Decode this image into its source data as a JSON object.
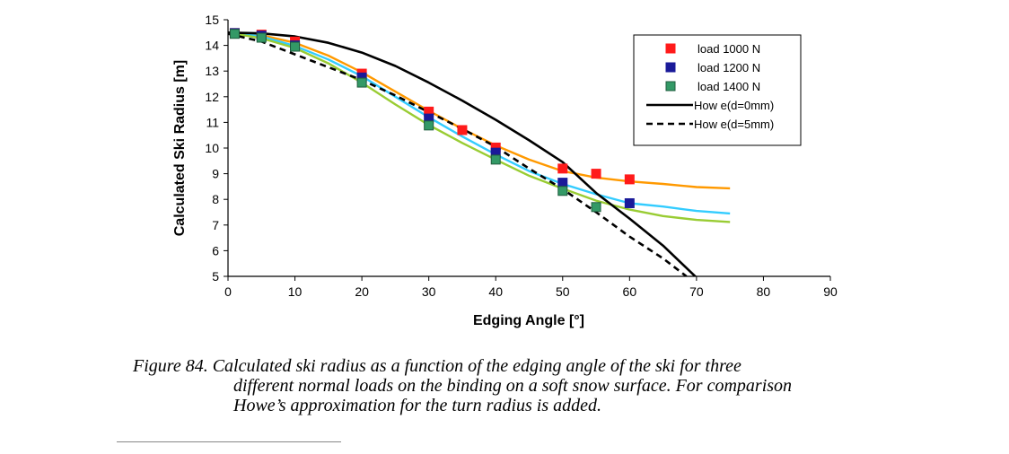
{
  "chart_data": {
    "type": "scatter",
    "title": "",
    "xlabel": "Edging Angle [°]",
    "ylabel": "Calculated Ski Radius [m]",
    "xlim": [
      0,
      90
    ],
    "ylim": [
      5,
      15
    ],
    "xticks": [
      0,
      10,
      20,
      30,
      40,
      50,
      60,
      70,
      80,
      90
    ],
    "yticks": [
      5,
      6,
      7,
      8,
      9,
      10,
      11,
      12,
      13,
      14,
      15
    ],
    "grid": false,
    "legend_position": "top-right",
    "series": [
      {
        "name": "load 1000 N",
        "kind": "markers",
        "marker": "square",
        "color": "#ff1a1a",
        "points": [
          [
            1,
            14.48
          ],
          [
            5,
            14.42
          ],
          [
            10,
            14.15
          ],
          [
            20,
            12.9
          ],
          [
            30,
            11.42
          ],
          [
            35,
            10.7
          ],
          [
            40,
            10.02
          ],
          [
            50,
            9.2
          ],
          [
            55,
            9.0
          ],
          [
            60,
            8.78
          ]
        ]
      },
      {
        "name": "load 1200 N",
        "kind": "markers",
        "marker": "square",
        "color": "#1a1a99",
        "points": [
          [
            1,
            14.48
          ],
          [
            5,
            14.38
          ],
          [
            10,
            14.0
          ],
          [
            20,
            12.75
          ],
          [
            30,
            11.15
          ],
          [
            40,
            9.82
          ],
          [
            50,
            8.65
          ],
          [
            60,
            7.85
          ]
        ]
      },
      {
        "name": "load 1400 N",
        "kind": "markers",
        "marker": "square",
        "color": "#339966",
        "points": [
          [
            1,
            14.45
          ],
          [
            5,
            14.3
          ],
          [
            10,
            13.95
          ],
          [
            20,
            12.55
          ],
          [
            30,
            10.88
          ],
          [
            40,
            9.55
          ],
          [
            50,
            8.33
          ],
          [
            55,
            7.7
          ]
        ]
      },
      {
        "name": "How e(d=0mm)",
        "kind": "line",
        "dash": "solid",
        "color": "#000000",
        "points": [
          [
            0,
            14.5
          ],
          [
            5,
            14.47
          ],
          [
            10,
            14.35
          ],
          [
            15,
            14.1
          ],
          [
            20,
            13.72
          ],
          [
            25,
            13.2
          ],
          [
            30,
            12.55
          ],
          [
            35,
            11.85
          ],
          [
            40,
            11.1
          ],
          [
            45,
            10.3
          ],
          [
            50,
            9.45
          ],
          [
            55,
            8.25
          ],
          [
            60,
            7.25
          ],
          [
            65,
            6.2
          ],
          [
            70,
            4.95
          ]
        ]
      },
      {
        "name": "How e(d=5mm)",
        "kind": "line",
        "dash": "dashed",
        "color": "#000000",
        "points": [
          [
            0,
            14.45
          ],
          [
            5,
            14.15
          ],
          [
            10,
            13.65
          ],
          [
            15,
            13.15
          ],
          [
            20,
            12.65
          ],
          [
            25,
            12.05
          ],
          [
            30,
            11.4
          ],
          [
            35,
            10.75
          ],
          [
            40,
            10.05
          ],
          [
            45,
            9.2
          ],
          [
            50,
            8.4
          ],
          [
            55,
            7.5
          ],
          [
            60,
            6.55
          ],
          [
            65,
            5.7
          ],
          [
            68.5,
            5.0
          ]
        ]
      },
      {
        "name": "",
        "kind": "curve",
        "color": "#ff9900",
        "points": [
          [
            1,
            14.5
          ],
          [
            5,
            14.4
          ],
          [
            10,
            14.1
          ],
          [
            15,
            13.6
          ],
          [
            20,
            12.95
          ],
          [
            25,
            12.2
          ],
          [
            30,
            11.45
          ],
          [
            35,
            10.75
          ],
          [
            40,
            10.1
          ],
          [
            45,
            9.55
          ],
          [
            50,
            9.1
          ],
          [
            55,
            8.85
          ],
          [
            60,
            8.7
          ],
          [
            65,
            8.6
          ],
          [
            70,
            8.48
          ],
          [
            75,
            8.43
          ]
        ]
      },
      {
        "name": "",
        "kind": "curve",
        "color": "#33ccff",
        "points": [
          [
            1,
            14.48
          ],
          [
            5,
            14.35
          ],
          [
            10,
            13.98
          ],
          [
            15,
            13.45
          ],
          [
            20,
            12.8
          ],
          [
            25,
            12.0
          ],
          [
            30,
            11.2
          ],
          [
            35,
            10.45
          ],
          [
            40,
            9.75
          ],
          [
            45,
            9.1
          ],
          [
            50,
            8.6
          ],
          [
            55,
            8.2
          ],
          [
            60,
            7.85
          ],
          [
            65,
            7.72
          ],
          [
            70,
            7.55
          ],
          [
            75,
            7.45
          ]
        ]
      },
      {
        "name": "",
        "kind": "curve",
        "color": "#99cc33",
        "points": [
          [
            1,
            14.45
          ],
          [
            5,
            14.28
          ],
          [
            10,
            13.9
          ],
          [
            15,
            13.3
          ],
          [
            20,
            12.55
          ],
          [
            25,
            11.7
          ],
          [
            30,
            10.9
          ],
          [
            35,
            10.2
          ],
          [
            40,
            9.55
          ],
          [
            45,
            8.92
          ],
          [
            50,
            8.42
          ],
          [
            55,
            7.95
          ],
          [
            60,
            7.6
          ],
          [
            65,
            7.35
          ],
          [
            70,
            7.2
          ],
          [
            75,
            7.12
          ]
        ]
      }
    ]
  },
  "caption": {
    "line1": "Figure 84.  Calculated ski radius as a function of the edging angle of the ski for three",
    "line2": "different normal loads on the binding on a soft snow surface. For comparison",
    "line3": "Howe’s approximation for the turn radius is added."
  }
}
